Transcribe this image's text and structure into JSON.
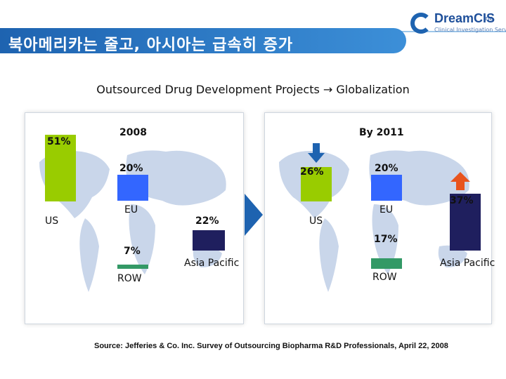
{
  "header": {
    "title": "북아메리카는 줄고, 아시아는 급속히 증가",
    "logo_name": "DreamCIS",
    "logo_inc": "Inc.",
    "logo_sub": "Clinical Investigation Services"
  },
  "subtitle": "Outsourced Drug Development Projects → Globalization",
  "source": "Source: Jefferies & Co. Inc. Survey of Outsourcing Biopharma R&D Professionals, April 22, 2008",
  "colors": {
    "us": "#99cc00",
    "eu": "#3366ff",
    "asia_pacific": "#1f1f5e",
    "row": "#339966",
    "decrease": "#1e63b0",
    "increase": "#e8541e"
  },
  "chart_data": [
    {
      "type": "bar",
      "title": "2008",
      "categories": [
        "US",
        "EU",
        "Asia Pacific",
        "ROW"
      ],
      "values": [
        51,
        20,
        22,
        7
      ],
      "value_labels": [
        "51%",
        "20%",
        "22%",
        "7%"
      ],
      "unit": "%"
    },
    {
      "type": "bar",
      "title": "By 2011",
      "categories": [
        "US",
        "EU",
        "Asia Pacific",
        "ROW"
      ],
      "values": [
        26,
        20,
        37,
        17
      ],
      "value_labels": [
        "26%",
        "20%",
        "37%",
        "17%"
      ],
      "unit": "%"
    }
  ]
}
